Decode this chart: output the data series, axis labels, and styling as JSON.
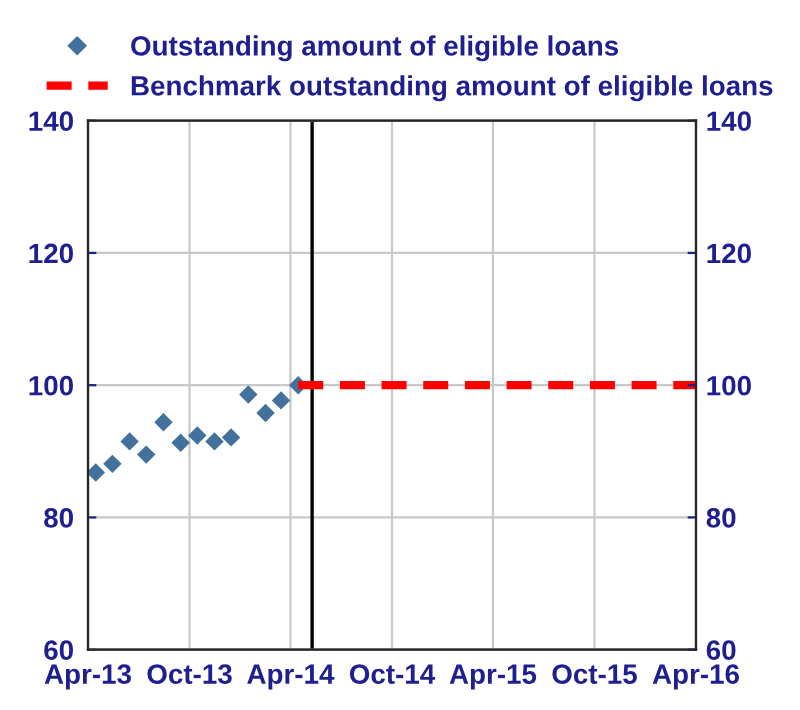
{
  "chart_data": {
    "type": "scatter",
    "series": [
      {
        "name": "Outstanding amount of eligible loans",
        "color": "#41719c",
        "marker": "diamond",
        "x": [
          "2013-04-15",
          "2013-05-15",
          "2013-06-15",
          "2013-07-15",
          "2013-08-15",
          "2013-09-15",
          "2013-10-15",
          "2013-11-15",
          "2013-12-15",
          "2014-01-15",
          "2014-02-15",
          "2014-03-15",
          "2014-04-15"
        ],
        "values": [
          86.8,
          88.1,
          91.5,
          89.5,
          94.4,
          91.3,
          92.4,
          91.5,
          92.1,
          98.6,
          95.8,
          97.7,
          100
        ]
      },
      {
        "name": "Benchmark outstanding amount of eligible loans",
        "type": "line",
        "color": "#ff0000",
        "line_style": "dashed",
        "marker": "none",
        "x": [
          "2014-04-15",
          "2016-04-01"
        ],
        "values": [
          100,
          100
        ]
      }
    ],
    "xlim": [
      "2013-04-01",
      "2016-04-01"
    ],
    "xticks": [
      {
        "value": "2013-04-01",
        "label": "Apr-13"
      },
      {
        "value": "2013-10-01",
        "label": "Oct-13"
      },
      {
        "value": "2014-04-01",
        "label": "Apr-14"
      },
      {
        "value": "2014-10-01",
        "label": "Oct-14"
      },
      {
        "value": "2015-04-01",
        "label": "Apr-15"
      },
      {
        "value": "2015-10-01",
        "label": "Oct-15"
      },
      {
        "value": "2016-04-01",
        "label": "Apr-16"
      }
    ],
    "ylim": [
      60,
      140
    ],
    "yticks": [
      60,
      80,
      100,
      120,
      140
    ],
    "y2lim": [
      60,
      140
    ],
    "y2ticks": [
      60,
      80,
      100,
      120,
      140
    ],
    "ref_lines": [
      {
        "axis": "x",
        "value": "2014-05-10",
        "color": "#000000",
        "line_style": "solid"
      }
    ],
    "grid": true,
    "legend": "top"
  }
}
